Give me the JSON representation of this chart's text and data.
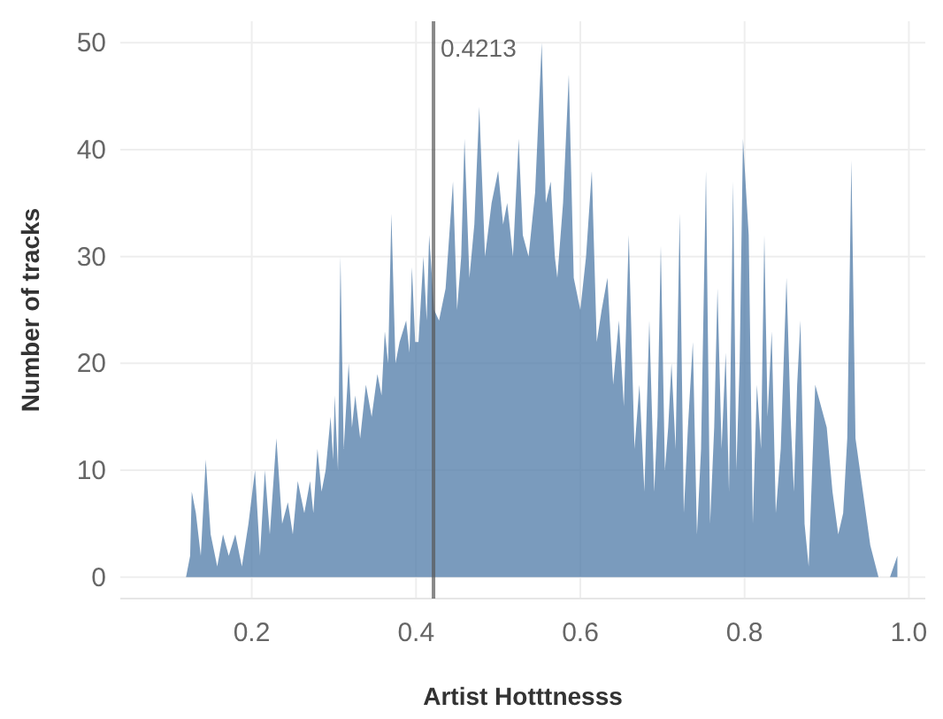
{
  "chart_data": {
    "type": "area",
    "xlabel": "Artist Hotttnesss",
    "ylabel": "Number of tracks",
    "x": [
      0.1,
      0.12,
      0.125,
      0.127,
      0.132,
      0.138,
      0.144,
      0.15,
      0.158,
      0.165,
      0.172,
      0.18,
      0.188,
      0.196,
      0.204,
      0.21,
      0.216,
      0.222,
      0.23,
      0.237,
      0.244,
      0.25,
      0.256,
      0.264,
      0.271,
      0.275,
      0.28,
      0.285,
      0.29,
      0.296,
      0.299,
      0.301,
      0.305,
      0.308,
      0.312,
      0.318,
      0.322,
      0.326,
      0.332,
      0.339,
      0.346,
      0.353,
      0.358,
      0.362,
      0.366,
      0.37,
      0.375,
      0.38,
      0.388,
      0.392,
      0.395,
      0.399,
      0.403,
      0.409,
      0.413,
      0.416,
      0.422,
      0.428,
      0.436,
      0.445,
      0.45,
      0.455,
      0.459,
      0.465,
      0.471,
      0.477,
      0.484,
      0.492,
      0.5,
      0.506,
      0.511,
      0.518,
      0.525,
      0.53,
      0.537,
      0.545,
      0.553,
      0.558,
      0.564,
      0.569,
      0.572,
      0.579,
      0.586,
      0.592,
      0.6,
      0.607,
      0.614,
      0.62,
      0.626,
      0.633,
      0.64,
      0.647,
      0.653,
      0.659,
      0.666,
      0.672,
      0.678,
      0.684,
      0.69,
      0.694,
      0.698,
      0.703,
      0.707,
      0.711,
      0.716,
      0.721,
      0.726,
      0.731,
      0.737,
      0.742,
      0.747,
      0.753,
      0.758,
      0.763,
      0.767,
      0.772,
      0.777,
      0.781,
      0.786,
      0.79,
      0.794,
      0.798,
      0.805,
      0.81,
      0.815,
      0.82,
      0.824,
      0.828,
      0.833,
      0.838,
      0.844,
      0.851,
      0.856,
      0.86,
      0.864,
      0.868,
      0.873,
      0.878,
      0.886,
      0.893,
      0.9,
      0.907,
      0.914,
      0.92,
      0.925,
      0.93,
      0.935,
      0.944,
      0.953,
      0.963,
      0.977,
      0.986
    ],
    "values": [
      0,
      0,
      2,
      8,
      6,
      2,
      11,
      4,
      1,
      4,
      2,
      4,
      1,
      5,
      10,
      2,
      10,
      4,
      13,
      5,
      7,
      4,
      9,
      6,
      9,
      6,
      12,
      8,
      10,
      15,
      11,
      17,
      10,
      30,
      12,
      20,
      14,
      17,
      13,
      18,
      15,
      19,
      17,
      23,
      20,
      34,
      20,
      22,
      24,
      21,
      29,
      22,
      22,
      30,
      24,
      32,
      25,
      24,
      27,
      37,
      25,
      30,
      41,
      28,
      33,
      44,
      30,
      35,
      38,
      33,
      35,
      30,
      41,
      32,
      30,
      36,
      50,
      35,
      37,
      30,
      28,
      35,
      47,
      28,
      25,
      30,
      38,
      22,
      25,
      28,
      18,
      24,
      16,
      32,
      12,
      18,
      8,
      24,
      8,
      15,
      31,
      10,
      14,
      20,
      12,
      34,
      6,
      14,
      22,
      4,
      12,
      38,
      5,
      14,
      27,
      12,
      21,
      8,
      37,
      10,
      20,
      41,
      32,
      5,
      18,
      12,
      32,
      15,
      23,
      6,
      12,
      28,
      15,
      8,
      18,
      24,
      5,
      1,
      18,
      16,
      14,
      8,
      4,
      6,
      13,
      39,
      13,
      8,
      3,
      0,
      0,
      2
    ],
    "color": "#4e79a7",
    "xlim": [
      0.04,
      1.02
    ],
    "xticks": [
      0.2,
      0.4,
      0.6,
      0.8,
      {
        "value": 1.0,
        "label": "1.0"
      }
    ],
    "ylim": [
      -2,
      52
    ],
    "yticks": [
      0,
      10,
      20,
      30,
      40,
      50
    ],
    "grid": true,
    "ref_lines": [
      {
        "axis": "x",
        "value": 0.4213,
        "label": "0.4213",
        "color": "#555555"
      }
    ]
  }
}
